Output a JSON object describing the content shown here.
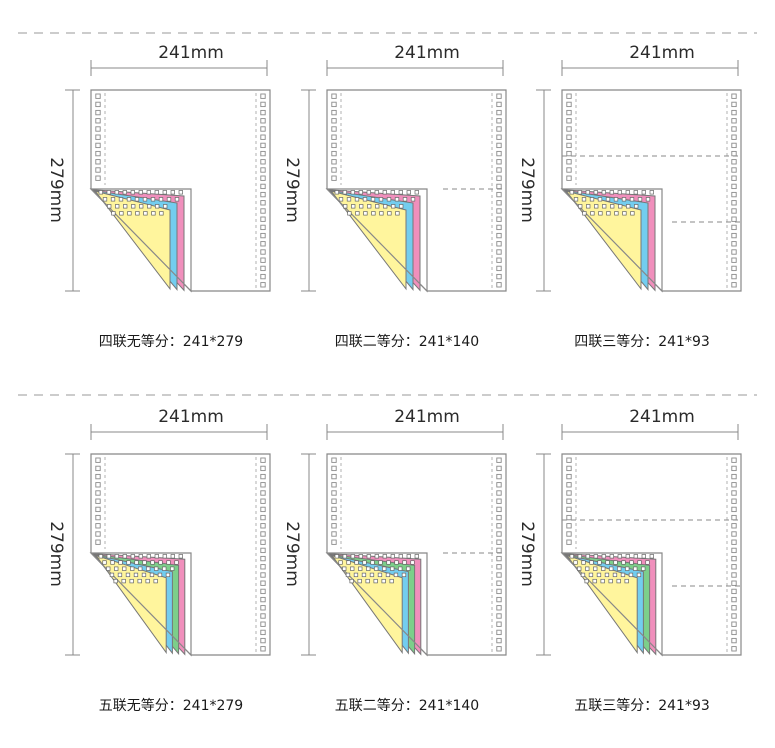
{
  "dimensions": {
    "width_label": "241mm",
    "height_label": "279mm"
  },
  "panels": [
    {
      "copies": 4,
      "divisions": 1,
      "caption": "四联无等分：241*279"
    },
    {
      "copies": 4,
      "divisions": 2,
      "caption": "四联二等分：241*140"
    },
    {
      "copies": 4,
      "divisions": 3,
      "caption": "四联三等分：241*93"
    },
    {
      "copies": 5,
      "divisions": 1,
      "caption": "五联无等分：241*279"
    },
    {
      "copies": 5,
      "divisions": 2,
      "caption": "五联二等分：241*140"
    },
    {
      "copies": 5,
      "divisions": 3,
      "caption": "五联三等分：241*93"
    }
  ],
  "copy_colors": {
    "four_ply": [
      "#ffffff",
      "#f08fbc",
      "#73cdef",
      "#fff59d"
    ],
    "five_ply": [
      "#ffffff",
      "#f08fbc",
      "#7ccf8a",
      "#73cdef",
      "#fff59d"
    ]
  },
  "line_color": "#888888"
}
